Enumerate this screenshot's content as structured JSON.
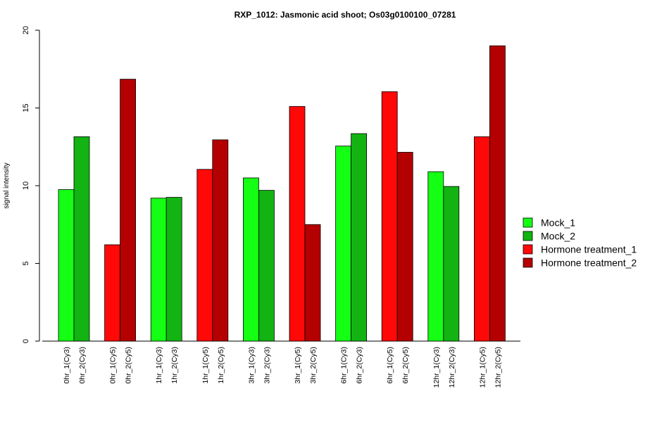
{
  "chart_data": {
    "type": "bar",
    "title": "RXP_1012: Jasmonic acid shoot; Os03g0100100_07281",
    "ylabel": "signal intensity",
    "xlabel": "",
    "ylim": [
      0,
      20
    ],
    "yticks": [
      0,
      5,
      10,
      15,
      20
    ],
    "grid": false,
    "legend_position": "right",
    "groups": [
      {
        "bars": [
          {
            "label": "0hr_1(Cy3)",
            "value": 9.75,
            "series": 0
          },
          {
            "label": "0hr_2(Cy3)",
            "value": 13.15,
            "series": 1
          }
        ]
      },
      {
        "bars": [
          {
            "label": "0hr_1(Cy5)",
            "value": 6.2,
            "series": 2
          },
          {
            "label": "0hr_2(Cy5)",
            "value": 16.85,
            "series": 3
          }
        ]
      },
      {
        "bars": [
          {
            "label": "1hr_1(Cy3)",
            "value": 9.2,
            "series": 0
          },
          {
            "label": "1hr_2(Cy3)",
            "value": 9.25,
            "series": 1
          }
        ]
      },
      {
        "bars": [
          {
            "label": "1hr_1(Cy5)",
            "value": 11.05,
            "series": 2
          },
          {
            "label": "1hr_2(Cy5)",
            "value": 12.95,
            "series": 3
          }
        ]
      },
      {
        "bars": [
          {
            "label": "3hr_1(Cy3)",
            "value": 10.5,
            "series": 0
          },
          {
            "label": "3hr_2(Cy3)",
            "value": 9.7,
            "series": 1
          }
        ]
      },
      {
        "bars": [
          {
            "label": "3hr_1(Cy5)",
            "value": 15.1,
            "series": 2
          },
          {
            "label": "3hr_2(Cy5)",
            "value": 7.5,
            "series": 3
          }
        ]
      },
      {
        "bars": [
          {
            "label": "6hr_1(Cy3)",
            "value": 12.55,
            "series": 0
          },
          {
            "label": "6hr_2(Cy3)",
            "value": 13.35,
            "series": 1
          }
        ]
      },
      {
        "bars": [
          {
            "label": "6hr_1(Cy5)",
            "value": 16.05,
            "series": 2
          },
          {
            "label": "6hr_2(Cy5)",
            "value": 12.15,
            "series": 3
          }
        ]
      },
      {
        "bars": [
          {
            "label": "12hr_1(Cy3)",
            "value": 10.9,
            "series": 0
          },
          {
            "label": "12hr_2(Cy3)",
            "value": 9.95,
            "series": 1
          }
        ]
      },
      {
        "bars": [
          {
            "label": "12hr_1(Cy5)",
            "value": 13.15,
            "series": 2
          },
          {
            "label": "12hr_2(Cy5)",
            "value": 19.0,
            "series": 3
          }
        ]
      }
    ],
    "series": [
      {
        "name": "Mock_1",
        "color": "#14ff14"
      },
      {
        "name": "Mock_2",
        "color": "#12b312"
      },
      {
        "name": "Hormone treatment_1",
        "color": "#ff0808"
      },
      {
        "name": "Hormone treatment_2",
        "color": "#b40000"
      }
    ]
  }
}
